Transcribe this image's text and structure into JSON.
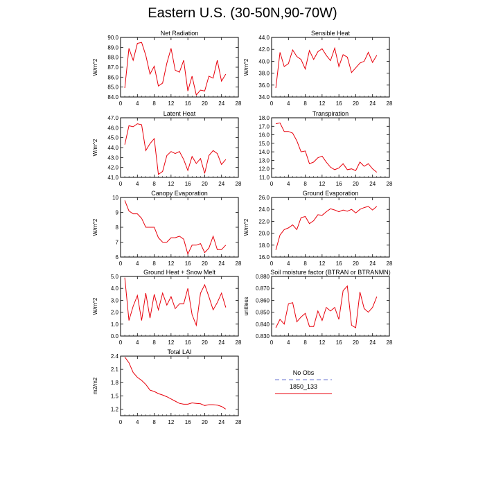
{
  "page": {
    "title": "Eastern U.S. (30-50N,90-70W)"
  },
  "chart_data": [
    {
      "type": "line",
      "title": "Net Radiation",
      "ylabel": "W/m^2",
      "xlim": [
        0,
        28
      ],
      "xticks": [
        0,
        4,
        8,
        12,
        16,
        20,
        24,
        28
      ],
      "ylim": [
        84.0,
        90.0
      ],
      "yticks": [
        "84.0",
        "85.0",
        "86.0",
        "87.0",
        "88.0",
        "89.0",
        "90.0"
      ],
      "series": [
        {
          "color": "#e8000b",
          "x": [
            1,
            2,
            3,
            4,
            5,
            6,
            7,
            8,
            9,
            10,
            11,
            12,
            13,
            14,
            15,
            16,
            17,
            18,
            19,
            20,
            21,
            22,
            23,
            24,
            25
          ],
          "y": [
            84.9,
            88.9,
            87.7,
            89.4,
            89.5,
            88.2,
            86.3,
            87.1,
            85.1,
            85.4,
            87.4,
            88.9,
            86.7,
            86.5,
            87.7,
            84.6,
            86.1,
            84.2,
            84.7,
            84.6,
            86.1,
            85.9,
            87.7,
            85.6,
            86.3
          ]
        }
      ]
    },
    {
      "type": "line",
      "title": "Sensible Heat",
      "ylabel": "W/m^2",
      "xlim": [
        0,
        28
      ],
      "xticks": [
        0,
        4,
        8,
        12,
        16,
        20,
        24,
        28
      ],
      "ylim": [
        34.0,
        44.0
      ],
      "yticks": [
        "34.0",
        "36.0",
        "38.0",
        "40.0",
        "42.0",
        "44.0"
      ],
      "series": [
        {
          "color": "#e8000b",
          "x": [
            1,
            2,
            3,
            4,
            5,
            6,
            7,
            8,
            9,
            10,
            11,
            12,
            13,
            14,
            15,
            16,
            17,
            18,
            19,
            20,
            21,
            22,
            23,
            24,
            25
          ],
          "y": [
            35.5,
            41.5,
            39.1,
            39.6,
            41.9,
            40.8,
            40.3,
            38.7,
            41.8,
            40.3,
            41.6,
            42.1,
            41.0,
            40.1,
            42.2,
            39.1,
            41.1,
            40.7,
            38.1,
            38.9,
            39.7,
            40.0,
            41.5,
            39.8,
            41.0
          ]
        }
      ]
    },
    {
      "type": "line",
      "title": "Latent Heat",
      "ylabel": "W/m^2",
      "xlim": [
        0,
        28
      ],
      "xticks": [
        0,
        4,
        8,
        12,
        16,
        20,
        24,
        28
      ],
      "ylim": [
        41.0,
        47.0
      ],
      "yticks": [
        "41.0",
        "42.0",
        "43.0",
        "44.0",
        "45.0",
        "46.0",
        "47.0"
      ],
      "series": [
        {
          "color": "#e8000b",
          "x": [
            1,
            2,
            3,
            4,
            5,
            6,
            7,
            8,
            9,
            10,
            11,
            12,
            13,
            14,
            15,
            16,
            17,
            18,
            19,
            20,
            21,
            22,
            23,
            24,
            25
          ],
          "y": [
            44.3,
            46.2,
            46.1,
            46.4,
            46.3,
            43.7,
            44.4,
            44.9,
            41.3,
            41.6,
            43.2,
            43.6,
            43.4,
            43.6,
            42.8,
            41.7,
            43.1,
            42.4,
            42.9,
            41.4,
            43.2,
            43.7,
            43.4,
            42.3,
            42.8
          ]
        }
      ]
    },
    {
      "type": "line",
      "title": "Transpiration",
      "ylabel": "",
      "xlim": [
        0,
        28
      ],
      "xticks": [
        0,
        4,
        8,
        12,
        16,
        20,
        24,
        28
      ],
      "ylim": [
        11.0,
        18.0
      ],
      "yticks": [
        "11.0",
        "12.0",
        "13.0",
        "14.0",
        "15.0",
        "16.0",
        "17.0",
        "18.0"
      ],
      "series": [
        {
          "color": "#e8000b",
          "x": [
            1,
            2,
            3,
            4,
            5,
            6,
            7,
            8,
            9,
            10,
            11,
            12,
            13,
            14,
            15,
            16,
            17,
            18,
            19,
            20,
            21,
            22,
            23,
            24,
            25
          ],
          "y": [
            17.3,
            17.4,
            16.4,
            16.4,
            16.2,
            15.3,
            14.0,
            14.1,
            12.6,
            12.8,
            13.3,
            13.5,
            12.8,
            12.2,
            11.9,
            12.1,
            12.6,
            11.9,
            12.0,
            11.8,
            12.8,
            12.3,
            12.6,
            12.0,
            11.6
          ]
        }
      ]
    },
    {
      "type": "line",
      "title": "Canopy Evaporation",
      "ylabel": "W/m^2",
      "xlim": [
        0,
        28
      ],
      "xticks": [
        0,
        4,
        8,
        12,
        16,
        20,
        24,
        28
      ],
      "ylim": [
        6,
        10
      ],
      "yticks": [
        "6",
        "7",
        "8",
        "9",
        "10"
      ],
      "series": [
        {
          "color": "#e8000b",
          "x": [
            1,
            2,
            3,
            4,
            5,
            6,
            7,
            8,
            9,
            10,
            11,
            12,
            13,
            14,
            15,
            16,
            17,
            18,
            19,
            20,
            21,
            22,
            23,
            24,
            25
          ],
          "y": [
            9.8,
            9.1,
            8.9,
            8.9,
            8.6,
            8.0,
            8.0,
            8.0,
            7.3,
            7.0,
            7.0,
            7.3,
            7.3,
            7.4,
            7.2,
            6.2,
            6.8,
            6.8,
            6.9,
            6.3,
            6.6,
            7.4,
            6.5,
            6.5,
            6.8
          ]
        }
      ]
    },
    {
      "type": "line",
      "title": "Ground Evaporation",
      "ylabel": "W/m^2",
      "xlim": [
        0,
        28
      ],
      "xticks": [
        0,
        4,
        8,
        12,
        16,
        20,
        24,
        28
      ],
      "ylim": [
        16.0,
        26.0
      ],
      "yticks": [
        "16.0",
        "18.0",
        "20.0",
        "22.0",
        "24.0",
        "26.0"
      ],
      "series": [
        {
          "color": "#e8000b",
          "x": [
            1,
            2,
            3,
            4,
            5,
            6,
            7,
            8,
            9,
            10,
            11,
            12,
            13,
            14,
            15,
            16,
            17,
            18,
            19,
            20,
            21,
            22,
            23,
            24,
            25
          ],
          "y": [
            17.2,
            19.7,
            20.6,
            20.9,
            21.4,
            20.6,
            22.6,
            22.8,
            21.6,
            22.1,
            23.1,
            23.0,
            23.6,
            24.1,
            23.9,
            23.6,
            23.9,
            23.7,
            24.0,
            23.4,
            24.0,
            24.3,
            24.5,
            23.9,
            24.5
          ]
        }
      ]
    },
    {
      "type": "line",
      "title": "Ground Heat + Snow Melt",
      "ylabel": "W/m^2",
      "xlim": [
        0,
        28
      ],
      "xticks": [
        0,
        4,
        8,
        12,
        16,
        20,
        24,
        28
      ],
      "ylim": [
        0.0,
        5.0
      ],
      "yticks": [
        "0.0",
        "1.0",
        "2.0",
        "3.0",
        "4.0",
        "5.0"
      ],
      "series": [
        {
          "color": "#e8000b",
          "x": [
            1,
            2,
            3,
            4,
            5,
            6,
            7,
            8,
            9,
            10,
            11,
            12,
            13,
            14,
            15,
            16,
            17,
            18,
            19,
            20,
            21,
            22,
            23,
            24,
            25
          ],
          "y": [
            4.9,
            1.3,
            2.5,
            3.4,
            1.3,
            3.6,
            1.5,
            3.5,
            2.2,
            3.6,
            2.6,
            3.3,
            2.3,
            2.7,
            2.7,
            4.0,
            1.8,
            0.9,
            3.6,
            4.3,
            3.3,
            2.2,
            2.8,
            3.6,
            2.4
          ]
        }
      ]
    },
    {
      "type": "line",
      "title": "Soil moisture factor (BTRAN or BTRANMN)",
      "ylabel": "unitless",
      "xlim": [
        0,
        28
      ],
      "xticks": [
        0,
        4,
        8,
        12,
        16,
        20,
        24,
        28
      ],
      "ylim": [
        0.83,
        0.88
      ],
      "yticks": [
        "0.830",
        "0.840",
        "0.850",
        "0.860",
        "0.870",
        "0.880"
      ],
      "series": [
        {
          "color": "#e8000b",
          "x": [
            1,
            2,
            3,
            4,
            5,
            6,
            7,
            8,
            9,
            10,
            11,
            12,
            13,
            14,
            15,
            16,
            17,
            18,
            19,
            20,
            21,
            22,
            23,
            24,
            25
          ],
          "y": [
            0.837,
            0.844,
            0.84,
            0.857,
            0.858,
            0.842,
            0.846,
            0.849,
            0.838,
            0.838,
            0.851,
            0.843,
            0.854,
            0.851,
            0.854,
            0.844,
            0.868,
            0.872,
            0.839,
            0.837,
            0.867,
            0.853,
            0.85,
            0.854,
            0.863
          ]
        }
      ]
    },
    {
      "type": "line",
      "title": "Total LAI",
      "ylabel": "m2/m2",
      "xlim": [
        0,
        28
      ],
      "xticks": [
        0,
        4,
        8,
        12,
        16,
        20,
        24,
        28
      ],
      "ylim": [
        1.05,
        2.4
      ],
      "yticks": [
        "1.2",
        "1.5",
        "1.8",
        "2.1",
        "2.4"
      ],
      "series": [
        {
          "color": "#e8000b",
          "x": [
            1,
            2,
            3,
            4,
            5,
            6,
            7,
            8,
            9,
            10,
            11,
            12,
            13,
            14,
            15,
            16,
            17,
            18,
            19,
            20,
            21,
            22,
            23,
            24,
            25
          ],
          "y": [
            2.38,
            2.25,
            2.03,
            1.92,
            1.85,
            1.76,
            1.63,
            1.6,
            1.55,
            1.52,
            1.48,
            1.43,
            1.38,
            1.33,
            1.31,
            1.31,
            1.34,
            1.33,
            1.32,
            1.28,
            1.3,
            1.3,
            1.29,
            1.26,
            1.2
          ]
        }
      ]
    }
  ],
  "legend": {
    "items": [
      {
        "label": "No Obs",
        "color": "#9aa0e0",
        "dash": "dashed"
      },
      {
        "label": "1850_133",
        "color": "#e8000b",
        "dash": "solid"
      }
    ]
  }
}
